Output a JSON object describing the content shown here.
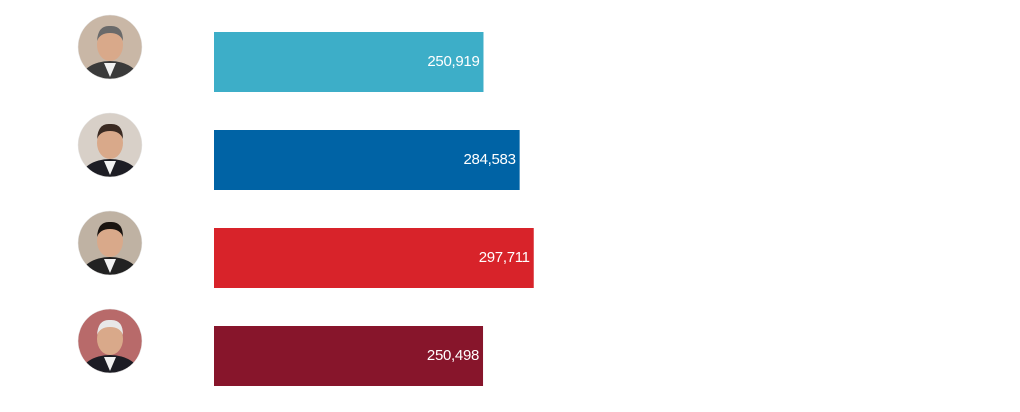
{
  "chart_data": {
    "type": "bar",
    "orientation": "horizontal",
    "categories": [
      null,
      null,
      null,
      null
    ],
    "values": [
      250919,
      284583,
      297711,
      250498
    ],
    "value_labels": [
      "250,919",
      "284,583",
      "297,711",
      "250,498"
    ],
    "colors": [
      "#3daec8",
      "#0063a5",
      "#d8232a",
      "#87152b"
    ]
  }
}
